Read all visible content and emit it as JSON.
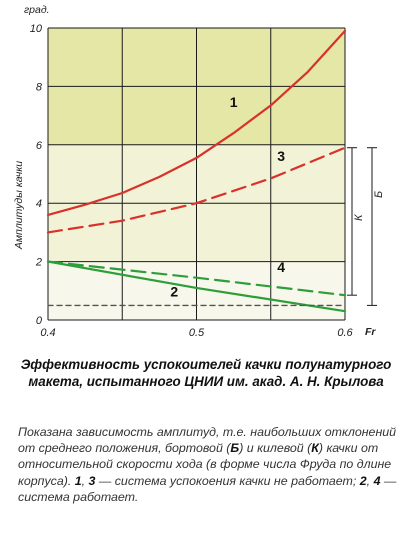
{
  "chart_data": {
    "type": "line",
    "x_unit_label": "Fr",
    "y_unit_label": "град.",
    "ylabel": "Амплитуды качки",
    "xlim": [
      0.4,
      0.6
    ],
    "ylim": [
      0,
      10
    ],
    "x_ticks": [
      "0.4",
      "0.5",
      "0.6"
    ],
    "y_ticks": [
      "0",
      "2",
      "4",
      "6",
      "8",
      "10"
    ],
    "grid": true,
    "background_bands": [
      {
        "from": 6,
        "to": 10,
        "color": "#e4e7a6"
      },
      {
        "from": 2,
        "to": 6,
        "color": "#f1f2d6"
      },
      {
        "from": 0,
        "to": 2,
        "color": "#f7f7eb"
      }
    ],
    "series": [
      {
        "label": "1",
        "style": "solid",
        "color": "#d9312b",
        "x": [
          0.4,
          0.425,
          0.45,
          0.475,
          0.5,
          0.525,
          0.55,
          0.575,
          0.6
        ],
        "y": [
          3.6,
          3.95,
          4.35,
          4.9,
          5.55,
          6.4,
          7.35,
          8.5,
          9.9
        ]
      },
      {
        "label": "3",
        "style": "dashed",
        "color": "#d9312b",
        "x": [
          0.4,
          0.45,
          0.5,
          0.55,
          0.6
        ],
        "y": [
          3.0,
          3.4,
          4.0,
          4.85,
          5.9
        ]
      },
      {
        "label": "4",
        "style": "dashed",
        "color": "#2e9e3a",
        "x": [
          0.4,
          0.5,
          0.6
        ],
        "y": [
          2.0,
          1.45,
          0.85
        ]
      },
      {
        "label": "2",
        "style": "solid",
        "color": "#2e9e3a",
        "x": [
          0.4,
          0.5,
          0.6
        ],
        "y": [
          2.0,
          1.1,
          0.3
        ]
      },
      {
        "label": "",
        "style": "dashed",
        "color": "#555555",
        "x": [
          0.4,
          0.6
        ],
        "y": [
          0.5,
          0.5
        ]
      }
    ],
    "brackets": [
      {
        "label": "Б",
        "from": 0.5,
        "to": 5.9
      },
      {
        "label": "К",
        "from": 0.85,
        "to": 5.9
      }
    ]
  },
  "caption": {
    "title": "Эффективность успокоителей качки полунатурного макета, испытанного ЦНИИ им. акад. А. Н. Крылова",
    "text_1": "Показана зависимость амплитуд, т.е. наибольших отклонений от среднего положения, бортовой (",
    "b1": "Б",
    "text_2": ") и килевой (",
    "b2": "К",
    "text_3": ") качки от относительной скорости хода (в форме числа Фруда по длине корпуса). ",
    "b3": "1",
    "text_4": ", ",
    "b4": "3",
    "text_5": " — система успокоения качки не работает; ",
    "b5": "2",
    "text_6": ", ",
    "b6": "4",
    "text_7": " — система работает."
  }
}
